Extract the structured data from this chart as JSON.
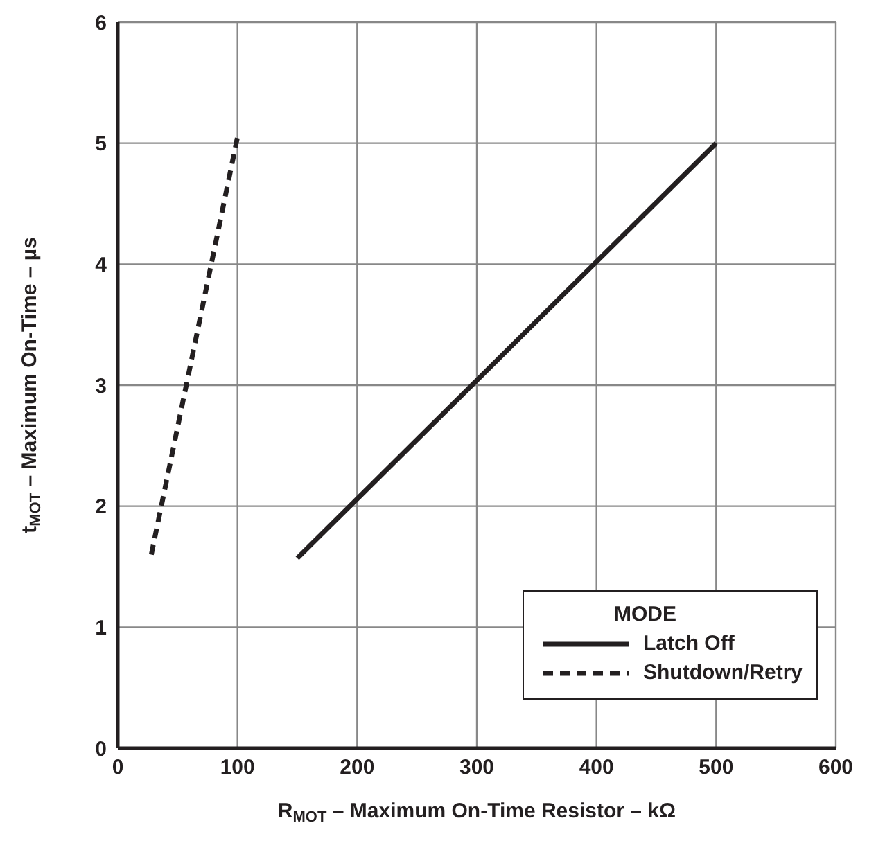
{
  "chart_data": {
    "type": "line",
    "xlabel": "R$_{MOT}$ – Maximum On-Time Resistor – kΩ",
    "ylabel": "t$_{MOT}$ – Maximum On-Time – µs",
    "legend_title": "MODE",
    "xlim": [
      0,
      600
    ],
    "xticks": [
      0,
      100,
      200,
      300,
      400,
      500,
      600
    ],
    "ylim": [
      0,
      6
    ],
    "yticks": [
      0,
      1,
      2,
      3,
      4,
      5,
      6
    ],
    "grid": true,
    "legend": "bottom right",
    "marker": "none",
    "series": [
      {
        "name": "Latch Off",
        "color": "#231f20",
        "line_style": "solid",
        "x": [
          150,
          500
        ],
        "values": [
          1.57,
          5
        ]
      },
      {
        "name": "Shutdown/Retry",
        "color": "#231f20",
        "line_style": "dashed",
        "x": [
          28,
          100
        ],
        "values": [
          1.6,
          5.05
        ]
      }
    ]
  }
}
